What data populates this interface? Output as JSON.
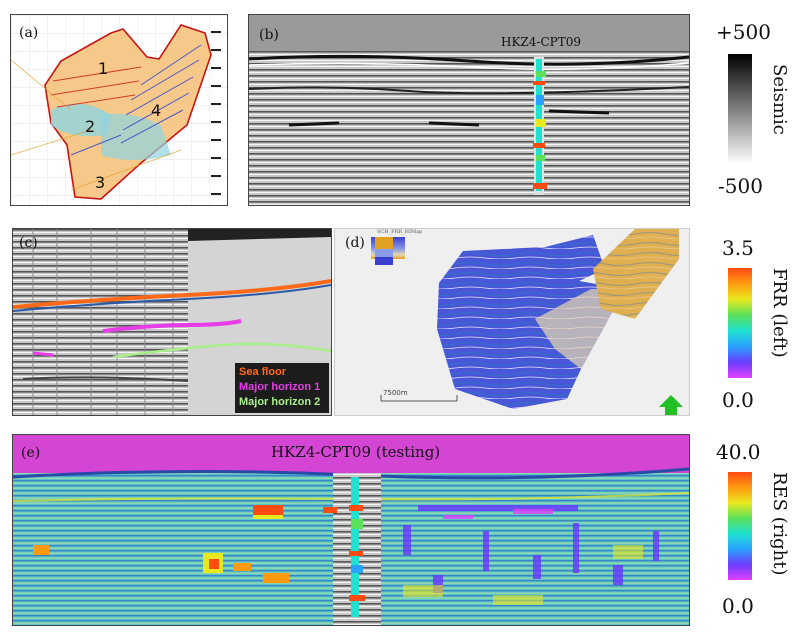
{
  "panels": {
    "a": {
      "label": "(a)",
      "zones": [
        "1",
        "2",
        "3",
        "4"
      ]
    },
    "b": {
      "label": "(b)",
      "well": "HKZ4-CPT09"
    },
    "c": {
      "label": "(c)",
      "legend": [
        {
          "text": "Sea floor",
          "color": "#ff6a1a"
        },
        {
          "text": "Major horizon 1",
          "color": "#e83ce8"
        },
        {
          "text": "Major horizon 2",
          "color": "#a8f08a"
        }
      ]
    },
    "d": {
      "label": "(d)",
      "scale": "7500m",
      "title": "SCH_FRR_HIMap"
    },
    "e": {
      "label": "(e)",
      "well": "HKZ4-CPT09 (testing)"
    }
  },
  "colorbars": {
    "seismic": {
      "max": "+500",
      "min": "-500",
      "title": "Seismic"
    },
    "frr": {
      "max": "3.5",
      "min": "0.0",
      "title": "FRR (left)"
    },
    "res": {
      "max": "40.0",
      "min": "0.0",
      "title": "RES (right)"
    }
  },
  "colors": {
    "rainbow": [
      "#e040ff",
      "#6a3cff",
      "#2aa0ff",
      "#20e0d0",
      "#5ae05a",
      "#e8e820",
      "#ff9a10",
      "#ff4a10"
    ],
    "magenta": "#d445d4",
    "orange_fill": "#f6c98a"
  }
}
